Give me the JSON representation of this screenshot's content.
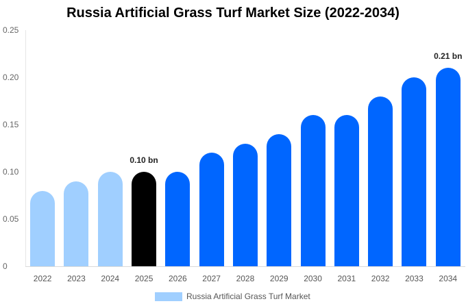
{
  "chart_data": {
    "type": "bar",
    "title": "Russia Artificial Grass Turf Market Size (2022-2034)",
    "xlabel": "",
    "ylabel": "",
    "ylim": [
      0,
      0.25
    ],
    "yticks": [
      "0",
      "0.05",
      "0.10",
      "0.15",
      "0.20",
      "0.25"
    ],
    "grid": false,
    "legend_position": "bottom",
    "categories": [
      "2022",
      "2023",
      "2024",
      "2025",
      "2026",
      "2027",
      "2028",
      "2029",
      "2030",
      "2031",
      "2032",
      "2033",
      "2034"
    ],
    "series": [
      {
        "name": "Russia Artificial Grass Turf Market",
        "values": [
          0.08,
          0.09,
          0.1,
          0.1,
          0.1,
          0.12,
          0.13,
          0.14,
          0.16,
          0.16,
          0.18,
          0.2,
          0.21
        ]
      }
    ],
    "bar_colors": [
      "#a0cfff",
      "#a0cfff",
      "#a0cfff",
      "#000000",
      "#0066ff",
      "#0066ff",
      "#0066ff",
      "#0066ff",
      "#0066ff",
      "#0066ff",
      "#0066ff",
      "#0066ff",
      "#0066ff"
    ],
    "annotations": [
      {
        "category": "2025",
        "text": "0.10 bn"
      },
      {
        "category": "2034",
        "text": "0.21 bn"
      }
    ]
  },
  "legend": {
    "label": "Russia Artificial Grass Turf Market",
    "color": "#a0cfff"
  }
}
